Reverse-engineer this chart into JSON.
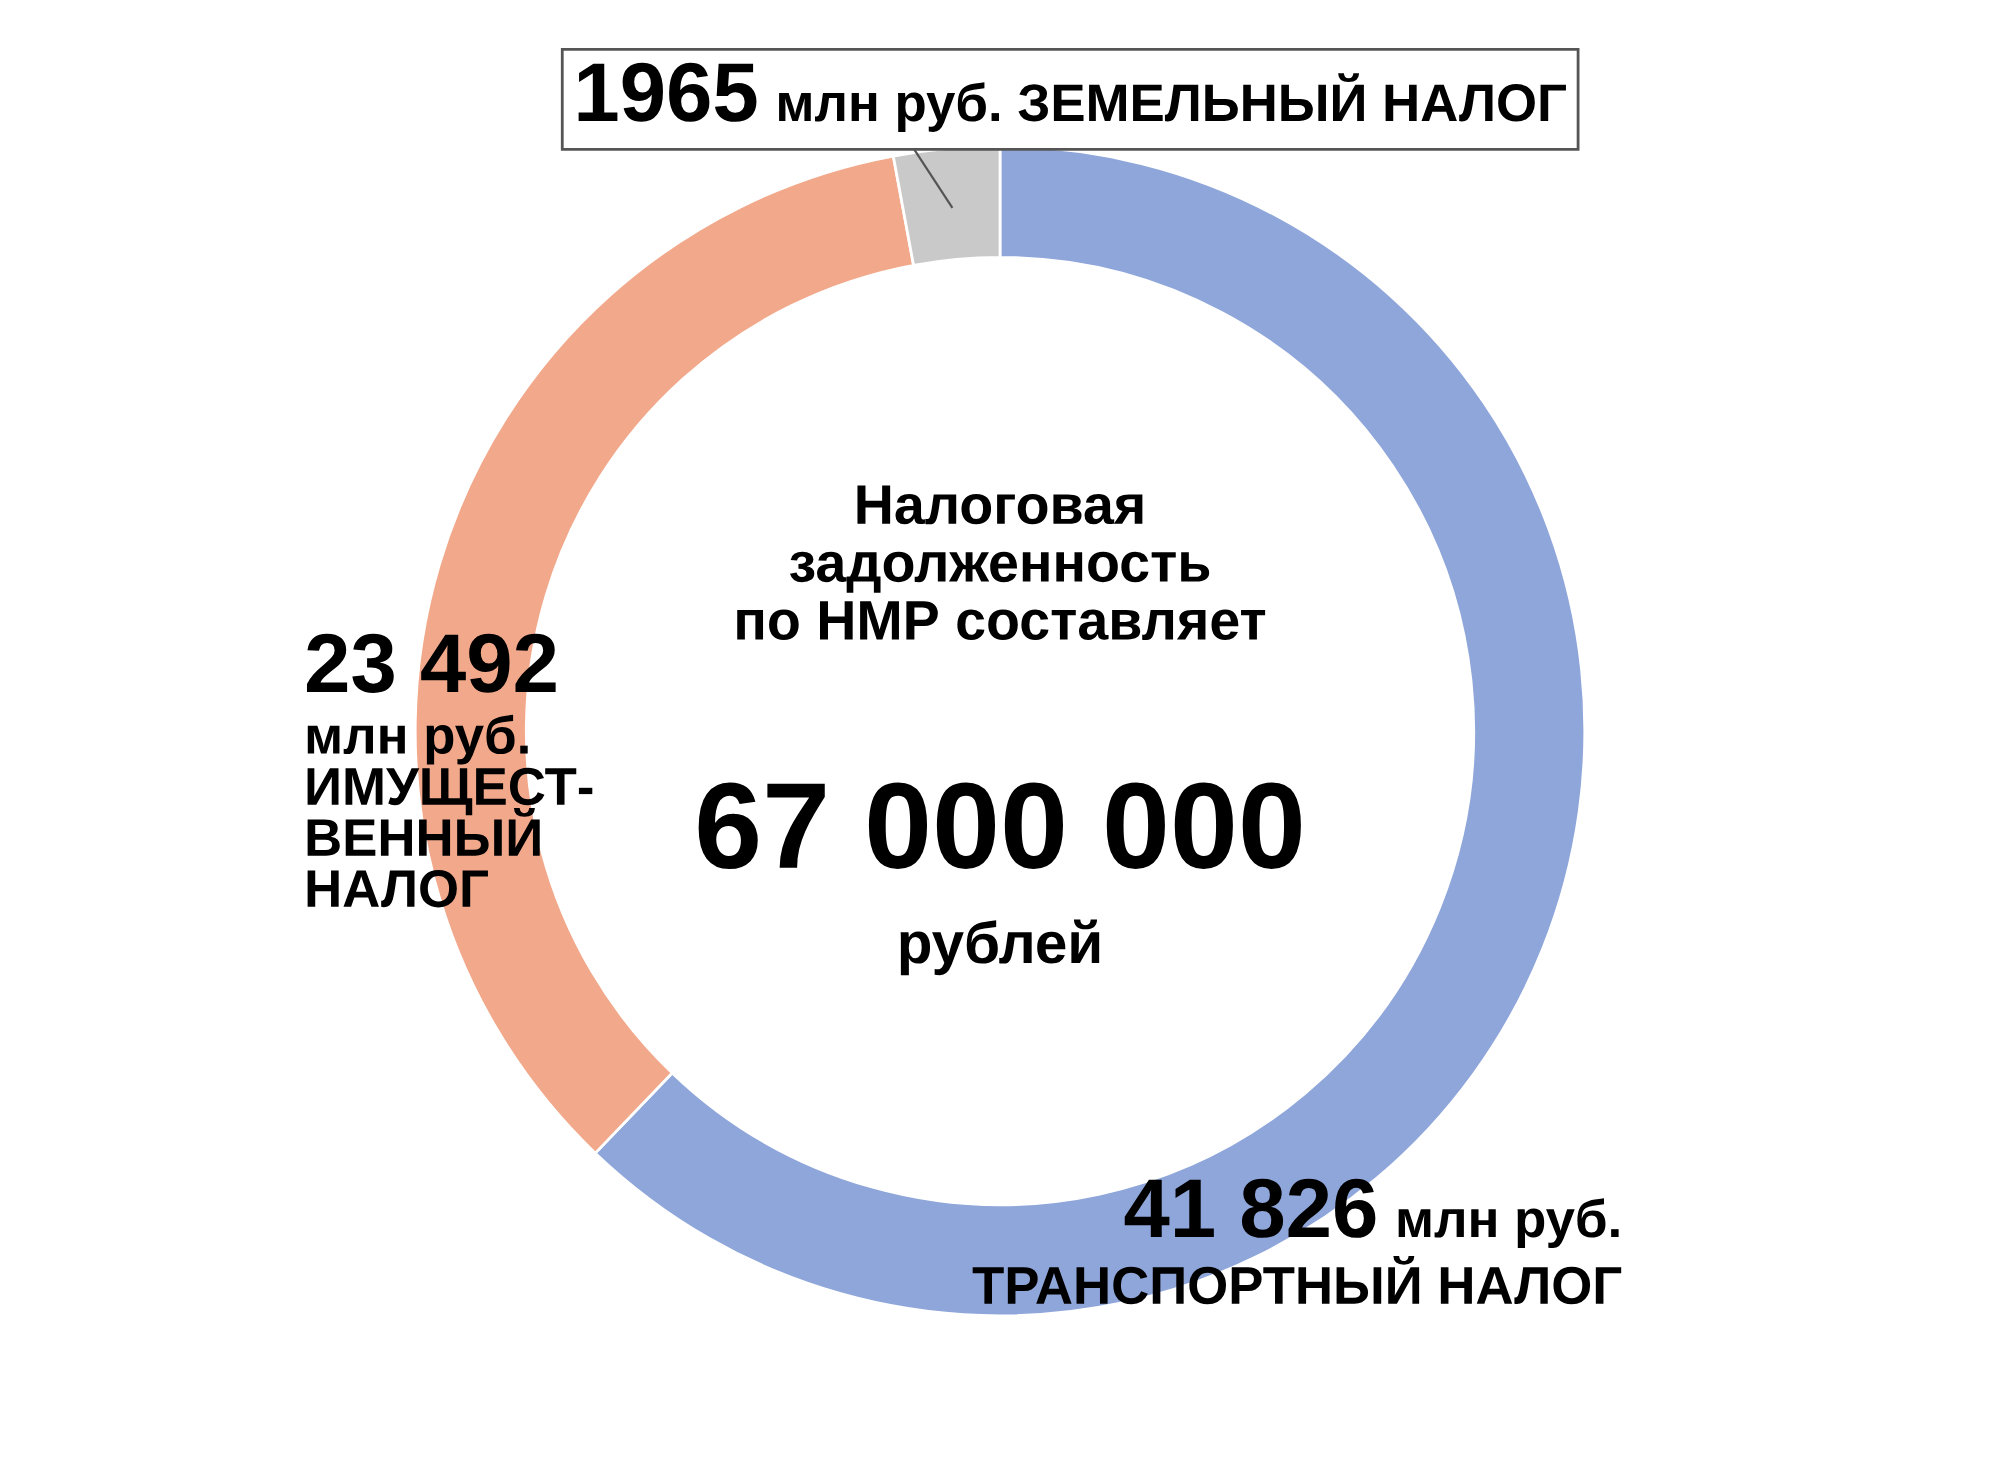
{
  "chart_data": {
    "type": "donut",
    "categories": [
      "млн руб.\nТРАНСПОРТНЫЙ НАЛОГ",
      "млн руб.\nИМУЩЕСТ-\nВЕННЫЙ\nНАЛОГ",
      "млн руб. ЗЕМЕЛЬНЫЙ НАЛОГ"
    ],
    "values": [
      41826,
      23492,
      1965
    ],
    "value_labels": [
      "41 826",
      "23 492",
      "1965"
    ],
    "colors": [
      "#8fa6da",
      "#f2a88a",
      "#c9c9c9"
    ],
    "annotations": [
      "Налоговая\nзадолженность\nпо НМР составляет",
      "67 000 000",
      "рублей"
    ]
  }
}
